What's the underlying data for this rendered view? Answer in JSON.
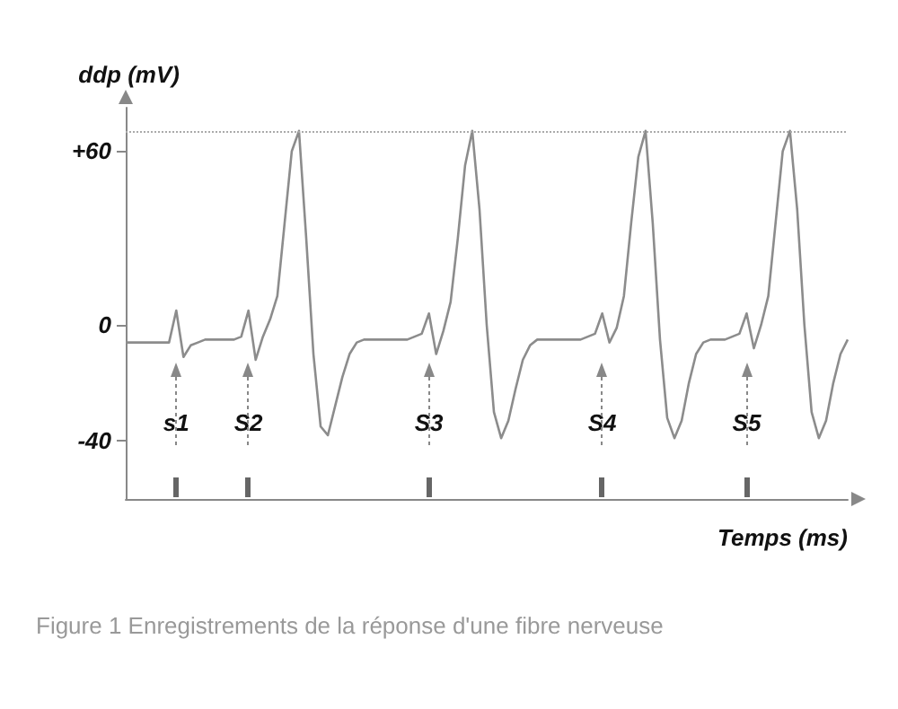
{
  "chart_data": {
    "type": "line",
    "xlabel": "Temps (ms)",
    "ylabel": "ddp (mV)",
    "annotations": [
      "Figure 1 Enregistrements de la réponse d'une fibre nerveuse"
    ],
    "categories": [
      null,
      null,
      null,
      null,
      null,
      null,
      null,
      "s1",
      null,
      null,
      null,
      null,
      null,
      null,
      null,
      null,
      null,
      "S2",
      null,
      null,
      null,
      null,
      null,
      null,
      null,
      null,
      null,
      null,
      null,
      null,
      null,
      null,
      null,
      null,
      null,
      null,
      null,
      null,
      null,
      null,
      null,
      null,
      "S3",
      null,
      null,
      null,
      null,
      null,
      null,
      null,
      null,
      null,
      null,
      null,
      null,
      null,
      null,
      null,
      null,
      null,
      null,
      null,
      null,
      null,
      null,
      null,
      "S4",
      null,
      null,
      null,
      null,
      null,
      null,
      null,
      null,
      null,
      null,
      null,
      null,
      null,
      null,
      null,
      null,
      null,
      null,
      null,
      "S5",
      null,
      null,
      null,
      null,
      null,
      null,
      null,
      null,
      null,
      null,
      null,
      null,
      null,
      null
    ],
    "values": [
      -6,
      -6,
      -6,
      -6,
      -6,
      -6,
      -6,
      5,
      -11,
      -7,
      -6,
      -5,
      -5,
      -5,
      -5,
      -5,
      -4,
      5,
      -12,
      -4,
      2,
      10,
      35,
      60,
      67,
      30,
      -10,
      -35,
      -38,
      -28,
      -18,
      -10,
      -6,
      -5,
      -5,
      -5,
      -5,
      -5,
      -5,
      -5,
      -4,
      -3,
      4,
      -10,
      -2,
      8,
      30,
      55,
      67,
      40,
      0,
      -30,
      -39,
      -33,
      -22,
      -12,
      -7,
      -5,
      -5,
      -5,
      -5,
      -5,
      -5,
      -5,
      -4,
      -3,
      4,
      -6,
      -1,
      10,
      35,
      58,
      67,
      35,
      -5,
      -32,
      -39,
      -33,
      -20,
      -10,
      -6,
      -5,
      -5,
      -5,
      -4,
      -3,
      4,
      -8,
      0,
      10,
      35,
      60,
      67,
      40,
      0,
      -30,
      -39,
      -33,
      -20,
      -10,
      -5
    ],
    "color": "#8c8c8c",
    "marker": "none",
    "line_style": "solid",
    "ylim": [
      -60,
      75
    ],
    "yticks": [
      {
        "value": 60,
        "label": "+60"
      },
      0,
      -40
    ],
    "ref_lines": [
      {
        "axis": "y",
        "value": 67,
        "line_style": "dotted",
        "color": "#aaaaaa"
      }
    ]
  }
}
